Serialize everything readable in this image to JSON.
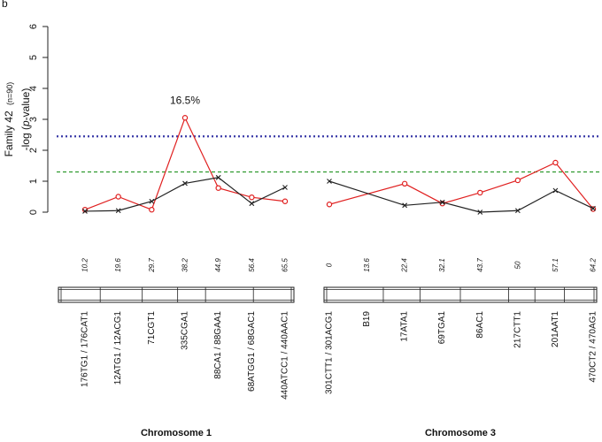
{
  "panel_label": "b",
  "chart_data": {
    "type": "line",
    "ylabel_family": "Family 42",
    "ylabel_n": "(n=90)",
    "ylabel_metric_prefix": "-log (",
    "ylabel_metric_p": "p",
    "ylabel_metric_suffix": "-value)",
    "ylim": [
      0,
      6
    ],
    "yticks": [
      "0",
      "1",
      "2",
      "3",
      "4",
      "5",
      "6"
    ],
    "thresholds": [
      {
        "value": 2.45,
        "color": "#3a3aa8",
        "style": "dotted"
      },
      {
        "value": 1.3,
        "color": "#2e9a2e",
        "style": "dashed"
      }
    ],
    "colors": {
      "red": "#e02020",
      "black": "#222222"
    },
    "annotation": {
      "text": "16.5%",
      "chromosome": 0,
      "index": 3
    },
    "chromosomes": [
      {
        "label": "Chromosome 1",
        "positions": [
          "10.2",
          "19.6",
          "29.7",
          "38.2",
          "44.9",
          "56.4",
          "65.5"
        ],
        "pos_values": [
          10.2,
          19.6,
          29.7,
          38.2,
          44.9,
          56.4,
          65.5
        ],
        "pos_range": [
          10.2,
          65.5
        ],
        "markers": [
          "176TG1 / 176CAT1",
          "12ATG1 / 12ACG1",
          "71CGT1",
          "335CGA1",
          "88CA1 / 88GAA1",
          "68ATGG1 / 68GAC1",
          "440ATCC1 / 440AAC1"
        ],
        "series": [
          {
            "color": "red",
            "marker": "circle",
            "values": [
              0.08,
              0.5,
              0.08,
              3.05,
              0.78,
              0.48,
              0.35
            ]
          },
          {
            "color": "black",
            "marker": "x",
            "values": [
              0.03,
              0.05,
              0.35,
              0.93,
              1.12,
              0.28,
              0.8
            ]
          }
        ]
      },
      {
        "label": "Chromosome 3",
        "positions": [
          "0",
          "13.6",
          "22.4",
          "32.1",
          "43.7",
          "50",
          "57.1",
          "64.2"
        ],
        "pos_values": [
          0,
          13.6,
          22.4,
          32.1,
          43.7,
          50,
          57.1,
          64.2
        ],
        "pos_range": [
          0,
          64.2
        ],
        "markers": [
          "301CTT1 / 301ACG1",
          "B19",
          "17ATA1",
          "69TGA1",
          "86AC1",
          "217CTT1",
          "201AAT1",
          "470CT2 / 470AG1"
        ],
        "series": [
          {
            "color": "red",
            "marker": "circle",
            "values": [
              0.25,
              null,
              0.92,
              0.28,
              0.63,
              1.03,
              1.6,
              0.1
            ]
          },
          {
            "color": "black",
            "marker": "x",
            "values": [
              1.0,
              null,
              0.22,
              0.32,
              0.0,
              0.05,
              0.7,
              0.12
            ]
          }
        ]
      }
    ]
  }
}
